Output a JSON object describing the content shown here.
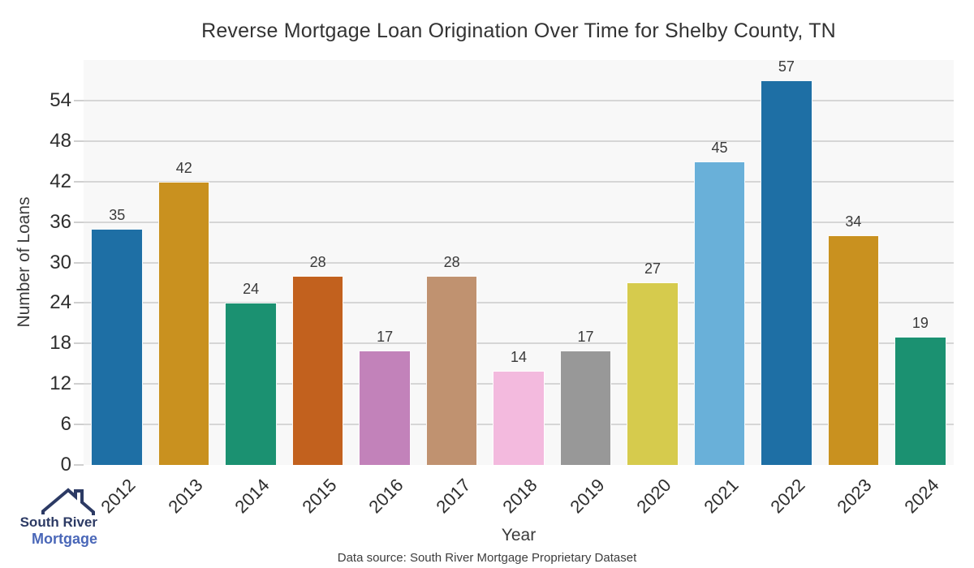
{
  "title": "Reverse Mortgage Loan Origination Over Time for Shelby County, TN",
  "chart_data": {
    "type": "bar",
    "categories": [
      "2012",
      "2013",
      "2014",
      "2015",
      "2016",
      "2017",
      "2018",
      "2019",
      "2020",
      "2021",
      "2022",
      "2023",
      "2024"
    ],
    "values": [
      35,
      42,
      24,
      28,
      17,
      28,
      14,
      17,
      27,
      45,
      57,
      34,
      19
    ],
    "bar_colors": [
      "#1e6fa5",
      "#c9911f",
      "#1b9171",
      "#c2611e",
      "#c282ba",
      "#c09270",
      "#f3bade",
      "#989898",
      "#d6cb4d",
      "#69b0d9",
      "#1e6fa5",
      "#c9911f",
      "#1b9171"
    ],
    "title": "Reverse Mortgage Loan Origination Over Time for Shelby County, TN",
    "xlabel": "Year",
    "ylabel": "Number of Loans",
    "ylim": [
      0,
      60
    ],
    "yticks": [
      0,
      6,
      12,
      18,
      24,
      30,
      36,
      42,
      48,
      54
    ],
    "grid": true,
    "legend": false,
    "value_labels": true,
    "plot_bg": "#f8f8f8",
    "gridline_color": "#d6d6d6"
  },
  "footer": {
    "source_text": "Data source: South River Mortgage Proprietary Dataset"
  },
  "logo": {
    "line1": "South River",
    "line2": "Mortgage",
    "line1_color": "#2c3a64",
    "line2_color": "#4a67b8",
    "roof_color": "#2c3a64"
  }
}
